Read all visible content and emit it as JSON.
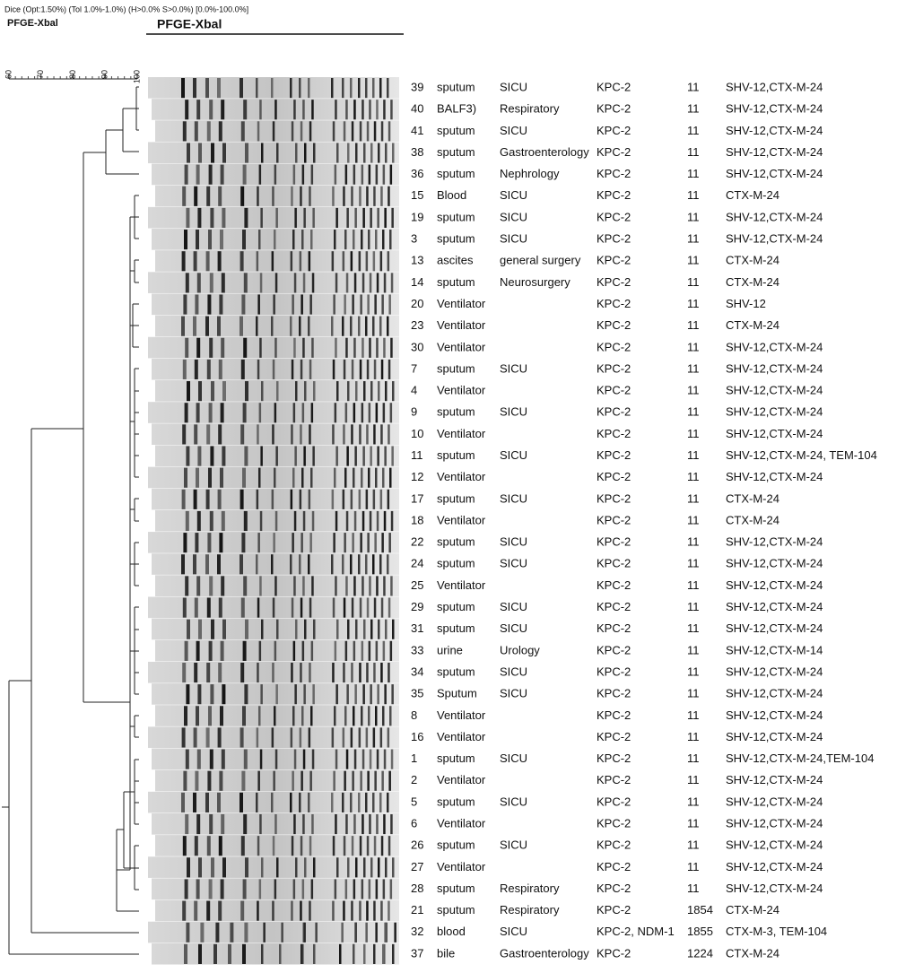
{
  "header": {
    "method": "Dice (Opt:1.50%) (Tol 1.0%-1.0%) (H>0.0% S>0.0%) [0.0%-100.0%]",
    "dendrogram_title": "PFGE-Xbal",
    "gel_title": "PFGE-Xbal"
  },
  "scale": {
    "ticks": [
      60,
      70,
      80,
      90,
      100
    ],
    "lim": [
      60,
      100
    ]
  },
  "rows": [
    {
      "id": "39",
      "source": "sputum",
      "ward": "SICU",
      "carbapenemase": "KPC-2",
      "st": "11",
      "esbl": "SHV-12,CTX-M-24"
    },
    {
      "id": "40",
      "source": "BALF3)",
      "ward": "Respiratory",
      "carbapenemase": "KPC-2",
      "st": "11",
      "esbl": "SHV-12,CTX-M-24"
    },
    {
      "id": "41",
      "source": "sputum",
      "ward": "SICU",
      "carbapenemase": "KPC-2",
      "st": "11",
      "esbl": "SHV-12,CTX-M-24"
    },
    {
      "id": "38",
      "source": "sputum",
      "ward": "Gastroenterology",
      "carbapenemase": "KPC-2",
      "st": "11",
      "esbl": "SHV-12,CTX-M-24"
    },
    {
      "id": "36",
      "source": "sputum",
      "ward": "Nephrology",
      "carbapenemase": "KPC-2",
      "st": "11",
      "esbl": "SHV-12,CTX-M-24"
    },
    {
      "id": "15",
      "source": "Blood",
      "ward": "SICU",
      "carbapenemase": "KPC-2",
      "st": "11",
      "esbl": "CTX-M-24"
    },
    {
      "id": "19",
      "source": "sputum",
      "ward": "SICU",
      "carbapenemase": "KPC-2",
      "st": "11",
      "esbl": "SHV-12,CTX-M-24"
    },
    {
      "id": "3",
      "source": "sputum",
      "ward": "SICU",
      "carbapenemase": "KPC-2",
      "st": "11",
      "esbl": "SHV-12,CTX-M-24"
    },
    {
      "id": "13",
      "source": "ascites",
      "ward": "general surgery",
      "carbapenemase": "KPC-2",
      "st": "11",
      "esbl": "CTX-M-24"
    },
    {
      "id": "14",
      "source": "sputum",
      "ward": "Neurosurgery",
      "carbapenemase": "KPC-2",
      "st": "11",
      "esbl": "CTX-M-24"
    },
    {
      "id": "20",
      "source": "Ventilator",
      "carbapenemase": "KPC-2",
      "st": "11",
      "esbl": "SHV-12"
    },
    {
      "id": "23",
      "source": "Ventilator",
      "carbapenemase": "KPC-2",
      "st": "11",
      "esbl": "CTX-M-24"
    },
    {
      "id": "30",
      "source": "Ventilator",
      "carbapenemase": "KPC-2",
      "st": "11",
      "esbl": "SHV-12,CTX-M-24"
    },
    {
      "id": "7",
      "source": "sputum",
      "ward": "SICU",
      "carbapenemase": "KPC-2",
      "st": "11",
      "esbl": "SHV-12,CTX-M-24"
    },
    {
      "id": "4",
      "source": "Ventilator",
      "carbapenemase": "KPC-2",
      "st": "11",
      "esbl": "SHV-12,CTX-M-24"
    },
    {
      "id": "9",
      "source": "sputum",
      "ward": "SICU",
      "carbapenemase": "KPC-2",
      "st": "11",
      "esbl": "SHV-12,CTX-M-24"
    },
    {
      "id": "10",
      "source": "Ventilator",
      "carbapenemase": "KPC-2",
      "st": "11",
      "esbl": "SHV-12,CTX-M-24"
    },
    {
      "id": "11",
      "source": "sputum",
      "ward": "SICU",
      "carbapenemase": "KPC-2",
      "st": "11",
      "esbl": "SHV-12,CTX-M-24, TEM-104"
    },
    {
      "id": "12",
      "source": "Ventilator",
      "carbapenemase": "KPC-2",
      "st": "11",
      "esbl": "SHV-12,CTX-M-24"
    },
    {
      "id": "17",
      "source": "sputum",
      "ward": "SICU",
      "carbapenemase": "KPC-2",
      "st": "11",
      "esbl": "CTX-M-24"
    },
    {
      "id": "18",
      "source": "Ventilator",
      "carbapenemase": "KPC-2",
      "st": "11",
      "esbl": "CTX-M-24"
    },
    {
      "id": "22",
      "source": "sputum",
      "ward": "SICU",
      "carbapenemase": "KPC-2",
      "st": "11",
      "esbl": "SHV-12,CTX-M-24"
    },
    {
      "id": "24",
      "source": "sputum",
      "ward": "SICU",
      "carbapenemase": "KPC-2",
      "st": "11",
      "esbl": "SHV-12,CTX-M-24"
    },
    {
      "id": "25",
      "source": "Ventilator",
      "carbapenemase": "KPC-2",
      "st": "11",
      "esbl": "SHV-12,CTX-M-24"
    },
    {
      "id": "29",
      "source": "sputum",
      "ward": "SICU",
      "carbapenemase": "KPC-2",
      "st": "11",
      "esbl": "SHV-12,CTX-M-24"
    },
    {
      "id": "31",
      "source": "sputum",
      "ward": "SICU",
      "carbapenemase": "KPC-2",
      "st": "11",
      "esbl": "SHV-12,CTX-M-24"
    },
    {
      "id": "33",
      "source": "urine",
      "ward": "Urology",
      "carbapenemase": "KPC-2",
      "st": "11",
      "esbl": "SHV-12,CTX-M-14"
    },
    {
      "id": "34",
      "source": "sputum",
      "ward": "SICU",
      "carbapenemase": "KPC-2",
      "st": "11",
      "esbl": "SHV-12,CTX-M-24"
    },
    {
      "id": "35",
      "source": "Sputum",
      "ward": "SICU",
      "carbapenemase": "KPC-2",
      "st": "11",
      "esbl": "SHV-12,CTX-M-24"
    },
    {
      "id": "8",
      "source": "Ventilator",
      "carbapenemase": "KPC-2",
      "st": "11",
      "esbl": "SHV-12,CTX-M-24"
    },
    {
      "id": "16",
      "source": "Ventilator",
      "carbapenemase": "KPC-2",
      "st": "11",
      "esbl": "SHV-12,CTX-M-24"
    },
    {
      "id": "1",
      "source": "sputum",
      "ward": "SICU",
      "carbapenemase": "KPC-2",
      "st": "11",
      "esbl": "SHV-12,CTX-M-24,TEM-104"
    },
    {
      "id": "2",
      "source": "Ventilator",
      "carbapenemase": "KPC-2",
      "st": "11",
      "esbl": "SHV-12,CTX-M-24"
    },
    {
      "id": "5",
      "source": "sputum",
      "ward": "SICU",
      "carbapenemase": "KPC-2",
      "st": "11",
      "esbl": "SHV-12,CTX-M-24"
    },
    {
      "id": "6",
      "source": "Ventilator",
      "carbapenemase": "KPC-2",
      "st": "11",
      "esbl": "SHV-12,CTX-M-24"
    },
    {
      "id": "26",
      "source": "sputum",
      "ward": "SICU",
      "carbapenemase": "KPC-2",
      "st": "11",
      "esbl": "SHV-12,CTX-M-24"
    },
    {
      "id": "27",
      "source": "Ventilator",
      "carbapenemase": "KPC-2",
      "st": "11",
      "esbl": "SHV-12,CTX-M-24"
    },
    {
      "id": "28",
      "source": "sputum",
      "ward": "Respiratory",
      "carbapenemase": "KPC-2",
      "st": "11",
      "esbl": "SHV-12,CTX-M-24"
    },
    {
      "id": "21",
      "source": "sputum",
      "ward": "Respiratory",
      "carbapenemase": "KPC-2",
      "st": "1854",
      "esbl": "CTX-M-24"
    },
    {
      "id": "32",
      "source": "blood",
      "ward": "SICU",
      "carbapenemase": "KPC-2, NDM-1",
      "st": "1855",
      "esbl": "CTX-M-3, TEM-104"
    },
    {
      "id": "37",
      "source": "bile",
      "ward": "Gastroenterology",
      "carbapenemase": "KPC-2",
      "st": "1224",
      "esbl": "CTX-M-24"
    }
  ]
}
